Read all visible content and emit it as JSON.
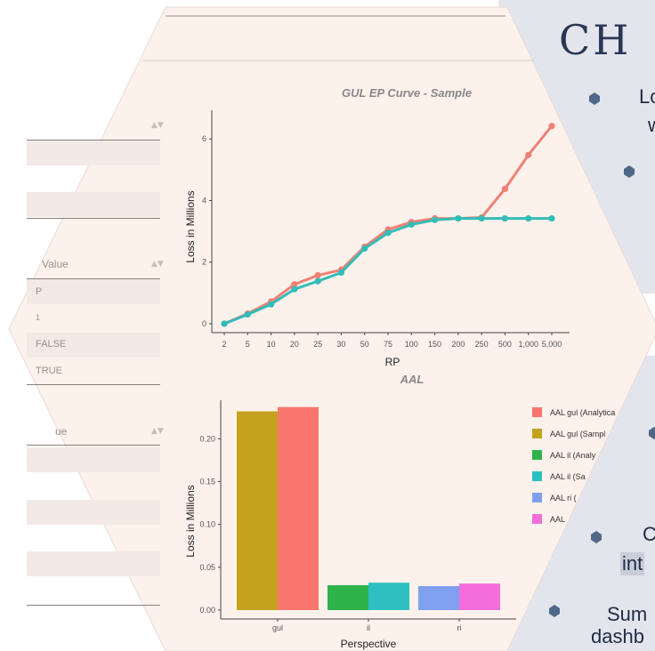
{
  "right_panel": {
    "heading": "CH",
    "fragments": [
      "Lo",
      "w",
      "C",
      "int",
      "Sum",
      "dashb"
    ],
    "bg": "#e3e5ec",
    "bullet_color": "#4f6788"
  },
  "table": {
    "header_value": "Value",
    "rows": [
      "P",
      "1",
      "FALSE",
      "TRUE"
    ],
    "header_value2": "ue",
    "row_bg": "#f3e9e5"
  },
  "chart_data": [
    {
      "type": "line",
      "title": "GUL EP Curve - Sample",
      "xlabel": "RP",
      "ylabel": "Loss in Millions",
      "categories": [
        "2",
        "5",
        "10",
        "20",
        "25",
        "30",
        "50",
        "75",
        "100",
        "150",
        "200",
        "250",
        "500",
        "1,000",
        "5,000"
      ],
      "series": [
        {
          "color": "#f08073",
          "values": [
            0.0,
            0.33,
            0.72,
            1.28,
            1.57,
            1.75,
            2.5,
            3.06,
            3.3,
            3.42,
            3.42,
            3.45,
            4.38,
            5.48,
            6.42
          ]
        },
        {
          "color": "#33bcb7",
          "values": [
            0.0,
            0.3,
            0.63,
            1.12,
            1.38,
            1.66,
            2.44,
            2.95,
            3.22,
            3.37,
            3.42,
            3.42,
            3.42,
            3.42,
            3.42
          ]
        }
      ],
      "ylim": [
        0,
        6.7
      ],
      "yticks": [
        "0",
        "2",
        "4",
        "6"
      ]
    },
    {
      "type": "bar",
      "title": "AAL",
      "xlabel": "Perspective",
      "ylabel": "Loss in Millions",
      "categories": [
        "gul",
        "il",
        "ri"
      ],
      "series": [
        {
          "name": "AAL gul (Analytica",
          "color": "#f8766d",
          "values": [
            0.237,
            null,
            null
          ]
        },
        {
          "name": "AAL gul (Sampl",
          "color": "#c4a21f",
          "values": [
            0.232,
            null,
            null
          ]
        },
        {
          "name": "AAL il (Analy",
          "color": "#2eb34a",
          "values": [
            null,
            0.029,
            null
          ]
        },
        {
          "name": "AAL il (Sa",
          "color": "#2ec0c0",
          "values": [
            null,
            0.032,
            null
          ]
        },
        {
          "name": "AAL ri (",
          "color": "#7fa0ef",
          "values": [
            null,
            null,
            0.028
          ]
        },
        {
          "name": "AAL",
          "color": "#f46edb",
          "values": [
            null,
            null,
            0.031
          ]
        }
      ],
      "ylim": [
        0,
        0.245
      ],
      "yticks": [
        "0.00",
        "0.05",
        "0.10",
        "0.15",
        "0.20"
      ]
    }
  ]
}
